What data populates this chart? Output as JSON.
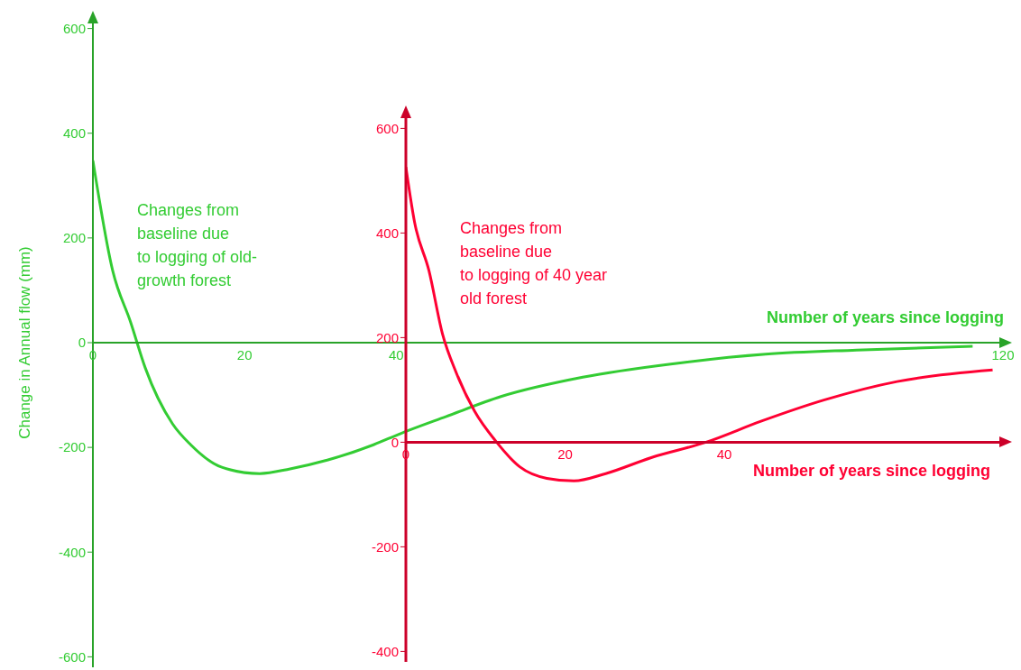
{
  "chart_data": [
    {
      "type": "line",
      "xlabel": "Number of years since logging",
      "ylabel": "Change in Annual flow (mm)",
      "annotations": [
        "Changes from\nbaseline due\nto logging of old-\ngrowth forest"
      ],
      "x": [
        0,
        2.6,
        5,
        6.9,
        10.5,
        12.9,
        17,
        22,
        26,
        31,
        37,
        40.5,
        46.6,
        53.8,
        64.6,
        76.7,
        88.7,
        100.7,
        116
      ],
      "series": [
        {
          "color": "#33cc33",
          "values": [
            348,
            138,
            38,
            -48,
            -155,
            -195,
            -238,
            -250,
            -241,
            -224,
            -195,
            -174,
            -141,
            -103,
            -66,
            -40,
            -22,
            -14,
            -7
          ]
        }
      ],
      "xlim": [
        0,
        120
      ],
      "xticks": [
        0,
        20,
        40,
        120
      ],
      "ylim": [
        -620,
        620
      ],
      "yticks": [
        -600,
        -400,
        -200,
        0,
        200,
        400,
        600
      ]
    },
    {
      "type": "line",
      "xlabel": "Number of years since logging",
      "annotations": [
        "Changes from\nbaseline due\nto logging of 40 year\nold forest"
      ],
      "x": [
        0,
        1.1,
        2.9,
        4.6,
        6.3,
        8.6,
        11.4,
        14.3,
        17.7,
        21.1,
        25.1,
        30.9,
        37.7,
        44.6,
        52.6,
        61.7,
        73.7
      ],
      "series": [
        {
          "color": "#ff0033",
          "values": [
            526,
            420,
            328,
            207,
            134,
            60,
            0,
            -47,
            -69,
            -74,
            -60,
            -29,
            0,
            40,
            81,
            116,
            138
          ]
        }
      ],
      "xlim": [
        0,
        75
      ],
      "xticks": [
        0,
        20,
        40
      ],
      "ylim": [
        -420,
        630
      ],
      "yticks": [
        -400,
        -200,
        0,
        200,
        400,
        600
      ]
    }
  ]
}
